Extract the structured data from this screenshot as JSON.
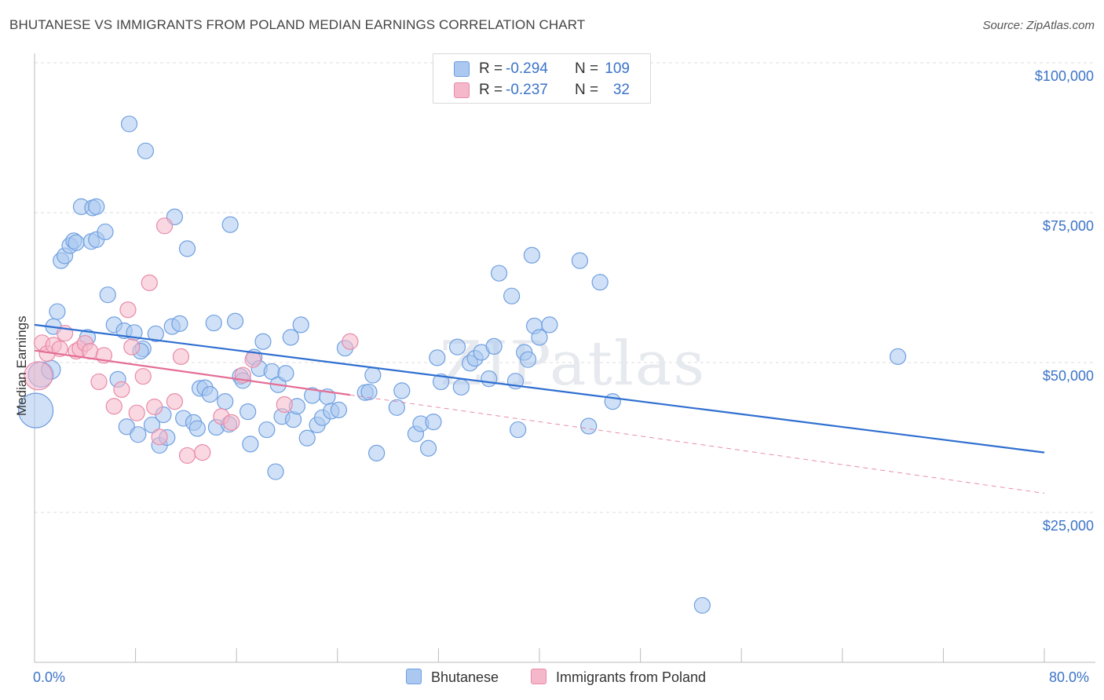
{
  "title": "BHUTANESE VS IMMIGRANTS FROM POLAND MEDIAN EARNINGS CORRELATION CHART",
  "source": "Source: ZipAtlas.com",
  "watermark": "ZIPatlas",
  "legend": {
    "rows": [
      {
        "r_label": "R =",
        "r_value": "-0.294",
        "n_label": "N =",
        "n_value": "109",
        "color": "#aac8f0"
      },
      {
        "r_label": "R =",
        "r_value": "-0.237",
        "n_label": "N =",
        "n_value": "32",
        "color": "#f5b8ca"
      }
    ]
  },
  "bottom_legend": [
    {
      "label": "Bhutanese",
      "color": "#aac8f0"
    },
    {
      "label": "Immigrants from Poland",
      "color": "#f5b8ca"
    }
  ],
  "colors": {
    "blue_fill": "#aac8f0",
    "blue_stroke": "#6f9fe0",
    "blue_line": "#2f6fd0",
    "pink_fill": "#f5b8ca",
    "pink_stroke": "#e88aa8",
    "pink_line": "#e46e96",
    "grid": "#dddddd",
    "axis_text": "#3b73c8"
  },
  "chart_data": {
    "type": "scatter",
    "title": "BHUTANESE VS IMMIGRANTS FROM POLAND MEDIAN EARNINGS CORRELATION CHART",
    "xlabel": "",
    "ylabel": "Median Earnings",
    "xlim": [
      0,
      80
    ],
    "ylim": [
      0,
      102000
    ],
    "x_tick_labels": [
      "0.0%",
      "80.0%"
    ],
    "y_ticks": [
      25000,
      50000,
      75000,
      100000
    ],
    "y_tick_labels": [
      "$25,000",
      "$50,000",
      "$75,000",
      "$100,000"
    ],
    "grid": true,
    "legend_position": "top-center",
    "series": [
      {
        "name": "Bhutanese",
        "trend": {
          "x": [
            0,
            80
          ],
          "y": [
            56300,
            35000
          ],
          "style": "solid"
        },
        "points": [
          [
            0.1,
            42000,
            2.2
          ],
          [
            0.5,
            48000,
            1.6
          ],
          [
            1.3,
            48800,
            1.2
          ],
          [
            1.5,
            56000,
            1
          ],
          [
            1.8,
            58500,
            1
          ],
          [
            2.1,
            67000,
            1
          ],
          [
            2.4,
            67800,
            1
          ],
          [
            2.8,
            69500,
            1
          ],
          [
            3.1,
            70300,
            1
          ],
          [
            3.3,
            70000,
            1
          ],
          [
            3.7,
            76000,
            1
          ],
          [
            4.6,
            75800,
            1
          ],
          [
            4.9,
            76000,
            1
          ],
          [
            4.5,
            70200,
            1
          ],
          [
            4.9,
            70500,
            1
          ],
          [
            5.6,
            71800,
            1
          ],
          [
            4.2,
            54200,
            1
          ],
          [
            5.8,
            61300,
            1
          ],
          [
            6.3,
            56300,
            1
          ],
          [
            6.6,
            47200,
            1
          ],
          [
            7.1,
            55300,
            1
          ],
          [
            7.3,
            39300,
            1
          ],
          [
            7.5,
            89800,
            1
          ],
          [
            7.9,
            55000,
            1
          ],
          [
            8.2,
            38000,
            1
          ],
          [
            8.6,
            52300,
            1
          ],
          [
            8.8,
            85300,
            1
          ],
          [
            9.3,
            39600,
            1
          ],
          [
            9.6,
            54800,
            1
          ],
          [
            9.9,
            36200,
            1
          ],
          [
            10.2,
            41300,
            1
          ],
          [
            10.5,
            37500,
            1
          ],
          [
            10.9,
            56000,
            1
          ],
          [
            11.1,
            74300,
            1
          ],
          [
            11.5,
            56500,
            1
          ],
          [
            11.8,
            40700,
            1
          ],
          [
            12.1,
            69000,
            1
          ],
          [
            12.6,
            40000,
            1
          ],
          [
            12.9,
            39000,
            1
          ],
          [
            13.1,
            45700,
            1
          ],
          [
            13.5,
            45800,
            1
          ],
          [
            13.9,
            44700,
            1
          ],
          [
            14.2,
            56600,
            1
          ],
          [
            14.4,
            39200,
            1
          ],
          [
            15.1,
            43500,
            1
          ],
          [
            15.4,
            39700,
            1
          ],
          [
            15.5,
            73000,
            1
          ],
          [
            15.9,
            56900,
            1
          ],
          [
            16.3,
            47700,
            1
          ],
          [
            16.5,
            47000,
            1
          ],
          [
            16.9,
            41800,
            1
          ],
          [
            17.1,
            36400,
            1
          ],
          [
            17.4,
            50900,
            1
          ],
          [
            17.8,
            49000,
            1
          ],
          [
            18.1,
            53500,
            1
          ],
          [
            18.4,
            38800,
            1
          ],
          [
            18.8,
            48500,
            1
          ],
          [
            19.1,
            31800,
            1
          ],
          [
            19.3,
            46300,
            1
          ],
          [
            19.6,
            41000,
            1
          ],
          [
            19.9,
            48200,
            1
          ],
          [
            20.3,
            54200,
            1
          ],
          [
            20.5,
            40500,
            1
          ],
          [
            20.8,
            42700,
            1
          ],
          [
            21.1,
            56300,
            1
          ],
          [
            21.6,
            37400,
            1
          ],
          [
            22.0,
            44500,
            1
          ],
          [
            22.4,
            39600,
            1
          ],
          [
            22.8,
            40800,
            1
          ],
          [
            23.2,
            44300,
            1
          ],
          [
            23.5,
            41900,
            1
          ],
          [
            24.1,
            42100,
            1
          ],
          [
            24.6,
            52400,
            1
          ],
          [
            26.2,
            45000,
            1
          ],
          [
            26.5,
            45100,
            1
          ],
          [
            26.8,
            47900,
            1
          ],
          [
            27.1,
            34900,
            1
          ],
          [
            28.7,
            42500,
            1
          ],
          [
            29.1,
            45300,
            1
          ],
          [
            30.2,
            38100,
            1
          ],
          [
            30.6,
            39800,
            1
          ],
          [
            31.2,
            35700,
            1
          ],
          [
            31.6,
            40100,
            1
          ],
          [
            31.9,
            50800,
            1
          ],
          [
            32.2,
            46800,
            1
          ],
          [
            33.5,
            52600,
            1
          ],
          [
            33.8,
            45900,
            1
          ],
          [
            34.5,
            49900,
            1
          ],
          [
            34.9,
            50700,
            1
          ],
          [
            35.4,
            51700,
            1
          ],
          [
            36.0,
            47300,
            1
          ],
          [
            36.4,
            52700,
            1
          ],
          [
            36.8,
            64900,
            1
          ],
          [
            37.8,
            61100,
            1
          ],
          [
            38.1,
            46900,
            1
          ],
          [
            38.3,
            38800,
            1
          ],
          [
            38.8,
            51700,
            1
          ],
          [
            39.1,
            50500,
            1
          ],
          [
            39.4,
            67900,
            1
          ],
          [
            39.6,
            56100,
            1
          ],
          [
            40.0,
            54200,
            1
          ],
          [
            40.8,
            56300,
            1
          ],
          [
            43.2,
            67000,
            1
          ],
          [
            43.9,
            39400,
            1
          ],
          [
            44.8,
            63400,
            1
          ],
          [
            45.8,
            43500,
            1
          ],
          [
            52.9,
            9500,
            1
          ],
          [
            68.4,
            51000,
            1
          ],
          [
            8.4,
            51900,
            1
          ]
        ]
      },
      {
        "name": "Immigrants from Poland",
        "trend": {
          "x": [
            0,
            25
          ],
          "y": [
            52000,
            44600
          ],
          "style": "solid",
          "extension": {
            "x": [
              25,
              80
            ],
            "y": [
              44600,
              28200
            ],
            "style": "dashed"
          }
        },
        "points": [
          [
            0.3,
            47800,
            1.8
          ],
          [
            0.6,
            53300,
            1
          ],
          [
            1.0,
            51500,
            1
          ],
          [
            1.5,
            52900,
            1
          ],
          [
            2.0,
            52300,
            1
          ],
          [
            2.4,
            54900,
            1
          ],
          [
            3.3,
            51900,
            1
          ],
          [
            3.6,
            52300,
            1
          ],
          [
            4.0,
            53200,
            1
          ],
          [
            4.4,
            51900,
            1
          ],
          [
            5.1,
            46800,
            1
          ],
          [
            5.5,
            51200,
            1
          ],
          [
            6.3,
            42700,
            1
          ],
          [
            6.9,
            45500,
            1
          ],
          [
            7.4,
            58800,
            1
          ],
          [
            7.7,
            52600,
            1
          ],
          [
            8.1,
            41600,
            1
          ],
          [
            8.6,
            47700,
            1
          ],
          [
            9.1,
            63300,
            1
          ],
          [
            9.5,
            42600,
            1
          ],
          [
            9.9,
            37600,
            1
          ],
          [
            10.3,
            72800,
            1
          ],
          [
            11.1,
            43500,
            1
          ],
          [
            11.6,
            51000,
            1
          ],
          [
            12.1,
            34500,
            1
          ],
          [
            13.3,
            35000,
            1
          ],
          [
            14.8,
            41000,
            1
          ],
          [
            15.6,
            40000,
            1
          ],
          [
            16.5,
            47900,
            1
          ],
          [
            17.3,
            50500,
            1
          ],
          [
            19.8,
            43000,
            1
          ],
          [
            25.0,
            53500,
            1
          ]
        ]
      }
    ]
  }
}
